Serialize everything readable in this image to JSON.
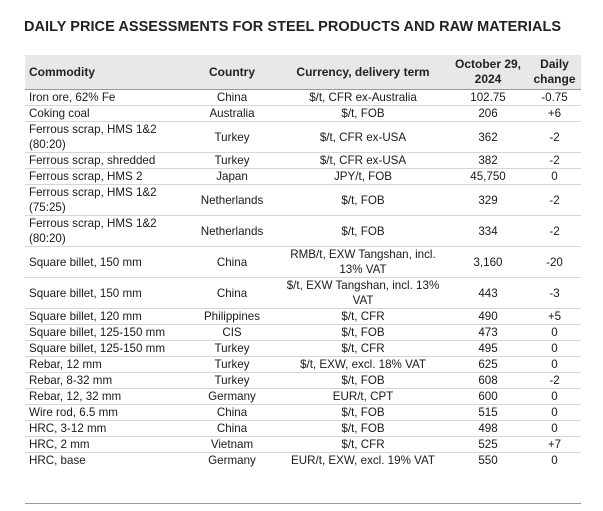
{
  "title": "DAILY PRICE ASSESSMENTS FOR STEEL PRODUCTS AND RAW MATERIALS",
  "headers": {
    "commodity": "Commodity",
    "country": "Country",
    "currency": "Currency, delivery term",
    "date": "October 29, 2024",
    "change": "Daily change"
  },
  "rows": [
    {
      "commodity": "Iron ore, 62% Fe",
      "country": "China",
      "currency": "$/t, CFR ex-Australia",
      "price": "102.75",
      "change": "-0.75"
    },
    {
      "commodity": "Coking coal",
      "country": "Australia",
      "currency": "$/t, FOB",
      "price": "206",
      "change": "+6"
    },
    {
      "commodity": "Ferrous scrap, HMS 1&2 (80:20)",
      "country": "Turkey",
      "currency": "$/t, CFR ex-USA",
      "price": "362",
      "change": "-2"
    },
    {
      "commodity": "Ferrous scrap, shredded",
      "country": "Turkey",
      "currency": "$/t, CFR ex-USA",
      "price": "382",
      "change": "-2"
    },
    {
      "commodity": "Ferrous scrap, HMS 2",
      "country": "Japan",
      "currency": "JPY/t, FOB",
      "price": "45,750",
      "change": "0"
    },
    {
      "commodity": "Ferrous scrap, HMS 1&2 (75:25)",
      "country": "Netherlands",
      "currency": "$/t, FOB",
      "price": "329",
      "change": "-2"
    },
    {
      "commodity": "Ferrous scrap, HMS 1&2 (80:20)",
      "country": "Netherlands",
      "currency": "$/t, FOB",
      "price": "334",
      "change": "-2"
    },
    {
      "commodity": "Square billet, 150 mm",
      "country": "China",
      "currency": "RMB/t, EXW Tangshan, incl. 13% VAT",
      "price": "3,160",
      "change": "-20"
    },
    {
      "commodity": "Square billet, 150 mm",
      "country": "China",
      "currency": "$/t, EXW Tangshan, incl. 13% VAT",
      "price": "443",
      "change": "-3"
    },
    {
      "commodity": "Square billet, 120 mm",
      "country": "Philippines",
      "currency": "$/t, CFR",
      "price": "490",
      "change": "+5"
    },
    {
      "commodity": "Square billet, 125-150 mm",
      "country": "CIS",
      "currency": "$/t, FOB",
      "price": "473",
      "change": "0"
    },
    {
      "commodity": "Square billet, 125-150 mm",
      "country": "Turkey",
      "currency": "$/t, CFR",
      "price": "495",
      "change": "0"
    },
    {
      "commodity": "Rebar, 12 mm",
      "country": "Turkey",
      "currency": "$/t, EXW, excl. 18% VAT",
      "price": "625",
      "change": "0"
    },
    {
      "commodity": "Rebar, 8-32 mm",
      "country": "Turkey",
      "currency": "$/t, FOB",
      "price": "608",
      "change": "-2"
    },
    {
      "commodity": "Rebar, 12, 32 mm",
      "country": "Germany",
      "currency": "EUR/t, CPT",
      "price": "600",
      "change": "0"
    },
    {
      "commodity": "Wire rod, 6.5 mm",
      "country": "China",
      "currency": "$/t, FOB",
      "price": "515",
      "change": "0"
    },
    {
      "commodity": "HRC, 3-12 mm",
      "country": "China",
      "currency": "$/t, FOB",
      "price": "498",
      "change": "0"
    },
    {
      "commodity": "HRC, 2 mm",
      "country": "Vietnam",
      "currency": "$/t, CFR",
      "price": "525",
      "change": "+7"
    },
    {
      "commodity": "HRC, base",
      "country": "Germany",
      "currency": "EUR/t, EXW, excl. 19% VAT",
      "price": "550",
      "change": "0"
    }
  ]
}
